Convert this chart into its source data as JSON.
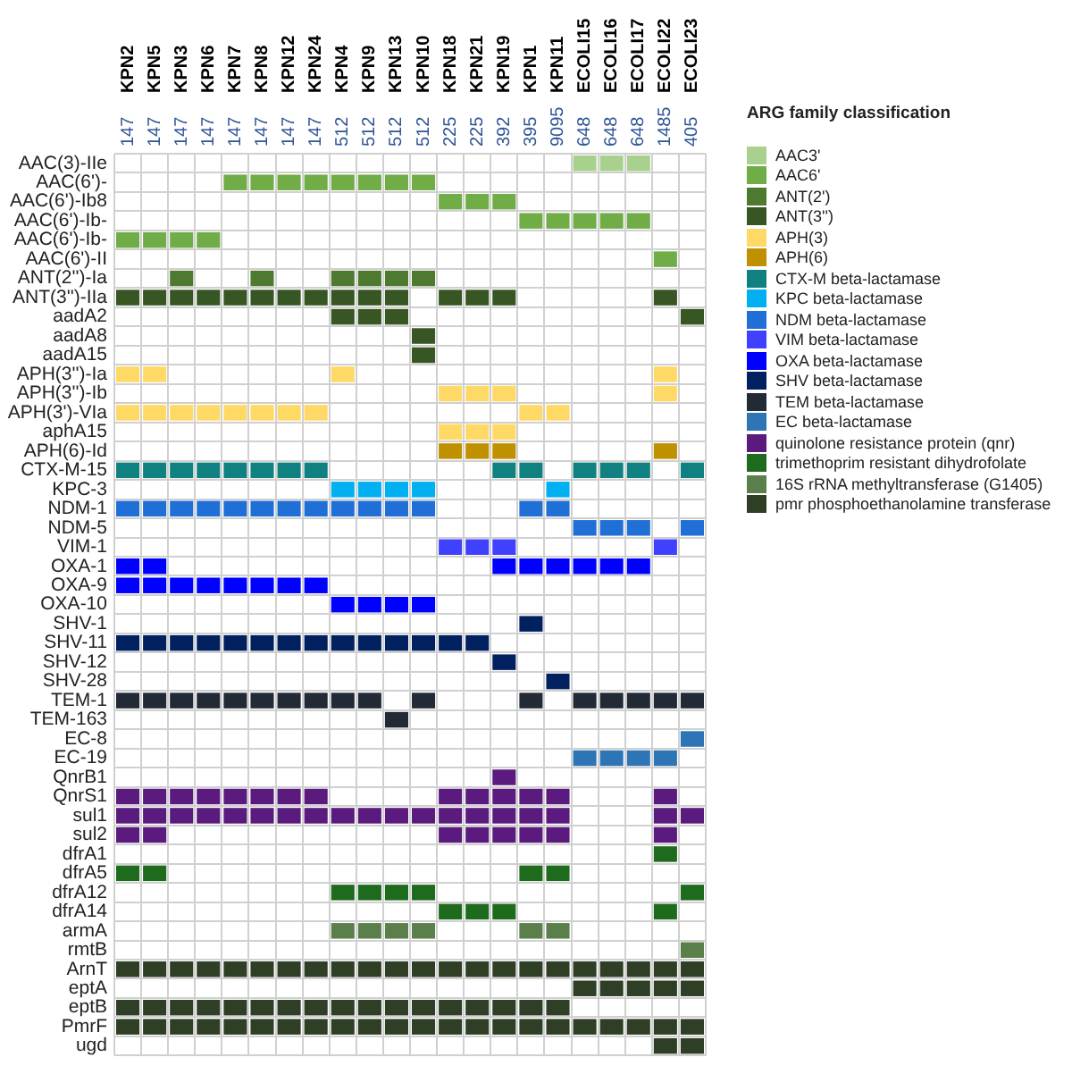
{
  "chart_data": {
    "type": "heatmap",
    "clabel": "ARG family classification",
    "grid": true,
    "categories": [
      "KPN2",
      "KPN5",
      "KPN3",
      "KPN6",
      "KPN7",
      "KPN8",
      "KPN12",
      "KPN24",
      "KPN4",
      "KPN9",
      "KPN13",
      "KPN10",
      "KPN18",
      "KPN21",
      "KPN19",
      "KPN1",
      "KPN11",
      "ECOLI15",
      "ECOLI16",
      "ECOLI17",
      "ECOLI22",
      "ECOLI23"
    ],
    "annotations": [
      "147",
      "147",
      "147",
      "147",
      "147",
      "147",
      "147",
      "147",
      "512",
      "512",
      "512",
      "512",
      "225",
      "225",
      "392",
      "395",
      "9095",
      "648",
      "648",
      "648",
      "1485",
      "405"
    ],
    "clim": [
      0.5,
      18.5
    ],
    "cticks": [
      {
        "value": 1,
        "label": "AAC3'"
      },
      {
        "value": 2,
        "label": "AAC6'"
      },
      {
        "value": 3,
        "label": "ANT(2')"
      },
      {
        "value": 4,
        "label": "ANT(3'')"
      },
      {
        "value": 5,
        "label": "APH(3)"
      },
      {
        "value": 6,
        "label": "APH(6)"
      },
      {
        "value": 7,
        "label": "CTX-M beta-lactamase"
      },
      {
        "value": 8,
        "label": "KPC beta-lactamase"
      },
      {
        "value": 9,
        "label": "NDM beta-lactamase"
      },
      {
        "value": 10,
        "label": "VIM beta-lactamase"
      },
      {
        "value": 11,
        "label": "OXA beta-lactamase"
      },
      {
        "value": 12,
        "label": "SHV beta-lactamase"
      },
      {
        "value": 13,
        "label": "TEM beta-lactamase"
      },
      {
        "value": 14,
        "label": "EC beta-lactamase"
      },
      {
        "value": 15,
        "label": "quinolone resistance protein (qnr)"
      },
      {
        "value": 16,
        "label": "trimethoprim resistant dihydrofolate"
      },
      {
        "value": 17,
        "label": "16S rRNA methyltransferase (G1405)"
      },
      {
        "value": 18,
        "label": "pmr phosphoethanolamine transferase"
      }
    ],
    "colors": [
      "#a9d18e",
      "#70ad47",
      "#4e7a2f",
      "#375623",
      "#ffd966",
      "#bf9000",
      "#108080",
      "#00b0f0",
      "#1f6fd6",
      "#4040ff",
      "#0000ff",
      "#002060",
      "#222a35",
      "#2e75b6",
      "#5a1a7e",
      "#1e6b1e",
      "#5b7f4b",
      "#2f3f26"
    ],
    "y_categories": [
      "AAC(3)-IIe",
      "AAC(6')-",
      "AAC(6')-Ib8",
      "AAC(6')-Ib-",
      "AAC(6')-Ib-",
      "AAC(6')-II",
      "ANT(2'')-Ia",
      "ANT(3'')-IIa",
      "aadA2",
      "aadA8",
      "aadA15",
      "APH(3'')-Ia",
      "APH(3'')-Ib",
      "APH(3')-VIa",
      "aphA15",
      "APH(6)-Id",
      "CTX-M-15",
      "KPC-3",
      "NDM-1",
      "NDM-5",
      "VIM-1",
      "OXA-1",
      "OXA-9",
      "OXA-10",
      "SHV-1",
      "SHV-11",
      "SHV-12",
      "SHV-28",
      "TEM-1",
      "TEM-163",
      "EC-8",
      "EC-19",
      "QnrB1",
      "QnrS1",
      "sul1",
      "sul2",
      "dfrA1",
      "dfrA5",
      "dfrA12",
      "dfrA14",
      "armA",
      "rmtB",
      "ArnT",
      "eptA",
      "eptB",
      "PmrF",
      "ugd"
    ],
    "cells": [
      [
        null,
        null,
        null,
        null,
        null,
        null,
        null,
        null,
        null,
        null,
        null,
        null,
        null,
        null,
        null,
        null,
        null,
        1,
        1,
        1,
        null,
        null
      ],
      [
        null,
        null,
        null,
        null,
        2,
        2,
        2,
        2,
        2,
        2,
        2,
        2,
        null,
        null,
        null,
        null,
        null,
        null,
        null,
        null,
        null,
        null
      ],
      [
        null,
        null,
        null,
        null,
        null,
        null,
        null,
        null,
        null,
        null,
        null,
        null,
        2,
        2,
        2,
        null,
        null,
        null,
        null,
        null,
        null,
        null
      ],
      [
        null,
        null,
        null,
        null,
        null,
        null,
        null,
        null,
        null,
        null,
        null,
        null,
        null,
        null,
        null,
        2,
        2,
        2,
        2,
        2,
        null,
        null
      ],
      [
        2,
        2,
        2,
        2,
        null,
        null,
        null,
        null,
        null,
        null,
        null,
        null,
        null,
        null,
        null,
        null,
        null,
        null,
        null,
        null,
        null,
        null
      ],
      [
        null,
        null,
        null,
        null,
        null,
        null,
        null,
        null,
        null,
        null,
        null,
        null,
        null,
        null,
        null,
        null,
        null,
        null,
        null,
        null,
        2,
        null
      ],
      [
        null,
        null,
        3,
        null,
        null,
        3,
        null,
        null,
        3,
        3,
        3,
        3,
        null,
        null,
        null,
        null,
        null,
        null,
        null,
        null,
        null,
        null
      ],
      [
        4,
        4,
        4,
        4,
        4,
        4,
        4,
        4,
        4,
        4,
        4,
        null,
        4,
        4,
        4,
        null,
        null,
        null,
        null,
        null,
        4,
        null
      ],
      [
        null,
        null,
        null,
        null,
        null,
        null,
        null,
        null,
        4,
        4,
        4,
        null,
        null,
        null,
        null,
        null,
        null,
        null,
        null,
        null,
        null,
        4
      ],
      [
        null,
        null,
        null,
        null,
        null,
        null,
        null,
        null,
        null,
        null,
        null,
        4,
        null,
        null,
        null,
        null,
        null,
        null,
        null,
        null,
        null,
        null
      ],
      [
        null,
        null,
        null,
        null,
        null,
        null,
        null,
        null,
        null,
        null,
        null,
        4,
        null,
        null,
        null,
        null,
        null,
        null,
        null,
        null,
        null,
        null
      ],
      [
        5,
        5,
        null,
        null,
        null,
        null,
        null,
        null,
        5,
        null,
        null,
        null,
        null,
        null,
        null,
        null,
        null,
        null,
        null,
        null,
        5,
        null
      ],
      [
        null,
        null,
        null,
        null,
        null,
        null,
        null,
        null,
        null,
        null,
        null,
        null,
        5,
        5,
        5,
        null,
        null,
        null,
        null,
        null,
        5,
        null
      ],
      [
        5,
        5,
        5,
        5,
        5,
        5,
        5,
        5,
        null,
        null,
        null,
        null,
        null,
        null,
        null,
        5,
        5,
        null,
        null,
        null,
        null,
        null
      ],
      [
        null,
        null,
        null,
        null,
        null,
        null,
        null,
        null,
        null,
        null,
        null,
        null,
        5,
        5,
        5,
        null,
        null,
        null,
        null,
        null,
        null,
        null
      ],
      [
        null,
        null,
        null,
        null,
        null,
        null,
        null,
        null,
        null,
        null,
        null,
        null,
        6,
        6,
        6,
        null,
        null,
        null,
        null,
        null,
        6,
        null
      ],
      [
        7,
        7,
        7,
        7,
        7,
        7,
        7,
        7,
        null,
        null,
        null,
        null,
        null,
        null,
        7,
        7,
        null,
        7,
        7,
        7,
        null,
        7
      ],
      [
        null,
        null,
        null,
        null,
        null,
        null,
        null,
        null,
        8,
        8,
        8,
        8,
        null,
        null,
        null,
        null,
        8,
        null,
        null,
        null,
        null,
        null
      ],
      [
        9,
        9,
        9,
        9,
        9,
        9,
        9,
        9,
        9,
        9,
        9,
        9,
        null,
        null,
        null,
        9,
        9,
        null,
        null,
        null,
        null,
        null
      ],
      [
        null,
        null,
        null,
        null,
        null,
        null,
        null,
        null,
        null,
        null,
        null,
        null,
        null,
        null,
        null,
        null,
        null,
        9,
        9,
        9,
        null,
        9
      ],
      [
        null,
        null,
        null,
        null,
        null,
        null,
        null,
        null,
        null,
        null,
        null,
        null,
        10,
        10,
        10,
        null,
        null,
        null,
        null,
        null,
        10,
        null
      ],
      [
        11,
        11,
        null,
        null,
        null,
        null,
        null,
        null,
        null,
        null,
        null,
        null,
        null,
        null,
        11,
        11,
        11,
        11,
        11,
        11,
        null,
        null
      ],
      [
        11,
        11,
        11,
        11,
        11,
        11,
        11,
        11,
        null,
        null,
        null,
        null,
        null,
        null,
        null,
        null,
        null,
        null,
        null,
        null,
        null,
        null
      ],
      [
        null,
        null,
        null,
        null,
        null,
        null,
        null,
        null,
        11,
        11,
        11,
        11,
        null,
        null,
        null,
        null,
        null,
        null,
        null,
        null,
        null,
        null
      ],
      [
        null,
        null,
        null,
        null,
        null,
        null,
        null,
        null,
        null,
        null,
        null,
        null,
        null,
        null,
        null,
        12,
        null,
        null,
        null,
        null,
        null,
        null
      ],
      [
        12,
        12,
        12,
        12,
        12,
        12,
        12,
        12,
        12,
        12,
        12,
        12,
        12,
        12,
        null,
        null,
        null,
        null,
        null,
        null,
        null,
        null
      ],
      [
        null,
        null,
        null,
        null,
        null,
        null,
        null,
        null,
        null,
        null,
        null,
        null,
        null,
        null,
        12,
        null,
        null,
        null,
        null,
        null,
        null,
        null
      ],
      [
        null,
        null,
        null,
        null,
        null,
        null,
        null,
        null,
        null,
        null,
        null,
        null,
        null,
        null,
        null,
        null,
        12,
        null,
        null,
        null,
        null,
        null
      ],
      [
        13,
        13,
        13,
        13,
        13,
        13,
        13,
        13,
        13,
        13,
        null,
        13,
        null,
        null,
        null,
        13,
        null,
        13,
        13,
        13,
        13,
        13
      ],
      [
        null,
        null,
        null,
        null,
        null,
        null,
        null,
        null,
        null,
        null,
        13,
        null,
        null,
        null,
        null,
        null,
        null,
        null,
        null,
        null,
        null,
        null
      ],
      [
        null,
        null,
        null,
        null,
        null,
        null,
        null,
        null,
        null,
        null,
        null,
        null,
        null,
        null,
        null,
        null,
        null,
        null,
        null,
        null,
        null,
        14
      ],
      [
        null,
        null,
        null,
        null,
        null,
        null,
        null,
        null,
        null,
        null,
        null,
        null,
        null,
        null,
        null,
        null,
        null,
        14,
        14,
        14,
        14,
        null
      ],
      [
        null,
        null,
        null,
        null,
        null,
        null,
        null,
        null,
        null,
        null,
        null,
        null,
        null,
        null,
        15,
        null,
        null,
        null,
        null,
        null,
        null,
        null
      ],
      [
        15,
        15,
        15,
        15,
        15,
        15,
        15,
        15,
        null,
        null,
        null,
        null,
        15,
        15,
        15,
        15,
        15,
        null,
        null,
        null,
        15,
        null
      ],
      [
        15,
        15,
        15,
        15,
        15,
        15,
        15,
        15,
        15,
        15,
        15,
        15,
        15,
        15,
        15,
        15,
        15,
        null,
        null,
        null,
        15,
        15
      ],
      [
        15,
        15,
        null,
        null,
        null,
        null,
        null,
        null,
        null,
        null,
        null,
        null,
        15,
        15,
        15,
        15,
        15,
        null,
        null,
        null,
        15,
        null
      ],
      [
        null,
        null,
        null,
        null,
        null,
        null,
        null,
        null,
        null,
        null,
        null,
        null,
        null,
        null,
        null,
        null,
        null,
        null,
        null,
        null,
        16,
        null
      ],
      [
        16,
        16,
        null,
        null,
        null,
        null,
        null,
        null,
        null,
        null,
        null,
        null,
        null,
        null,
        null,
        16,
        16,
        null,
        null,
        null,
        null,
        null
      ],
      [
        null,
        null,
        null,
        null,
        null,
        null,
        null,
        null,
        16,
        16,
        16,
        16,
        null,
        null,
        null,
        null,
        null,
        null,
        null,
        null,
        null,
        16
      ],
      [
        null,
        null,
        null,
        null,
        null,
        null,
        null,
        null,
        null,
        null,
        null,
        null,
        16,
        16,
        16,
        null,
        null,
        null,
        null,
        null,
        16,
        null
      ],
      [
        null,
        null,
        null,
        null,
        null,
        null,
        null,
        null,
        17,
        17,
        17,
        17,
        null,
        null,
        null,
        17,
        17,
        null,
        null,
        null,
        null,
        null
      ],
      [
        null,
        null,
        null,
        null,
        null,
        null,
        null,
        null,
        null,
        null,
        null,
        null,
        null,
        null,
        null,
        null,
        null,
        null,
        null,
        null,
        null,
        17
      ],
      [
        18,
        18,
        18,
        18,
        18,
        18,
        18,
        18,
        18,
        18,
        18,
        18,
        18,
        18,
        18,
        18,
        18,
        18,
        18,
        18,
        18,
        18
      ],
      [
        null,
        null,
        null,
        null,
        null,
        null,
        null,
        null,
        null,
        null,
        null,
        null,
        null,
        null,
        null,
        null,
        null,
        18,
        18,
        18,
        18,
        18
      ],
      [
        18,
        18,
        18,
        18,
        18,
        18,
        18,
        18,
        18,
        18,
        18,
        18,
        18,
        18,
        18,
        18,
        18,
        null,
        null,
        null,
        null,
        null
      ],
      [
        18,
        18,
        18,
        18,
        18,
        18,
        18,
        18,
        18,
        18,
        18,
        18,
        18,
        18,
        18,
        18,
        18,
        18,
        18,
        18,
        18,
        18
      ],
      [
        null,
        null,
        null,
        null,
        null,
        null,
        null,
        null,
        null,
        null,
        null,
        null,
        null,
        null,
        null,
        null,
        null,
        null,
        null,
        null,
        18,
        18
      ]
    ]
  }
}
